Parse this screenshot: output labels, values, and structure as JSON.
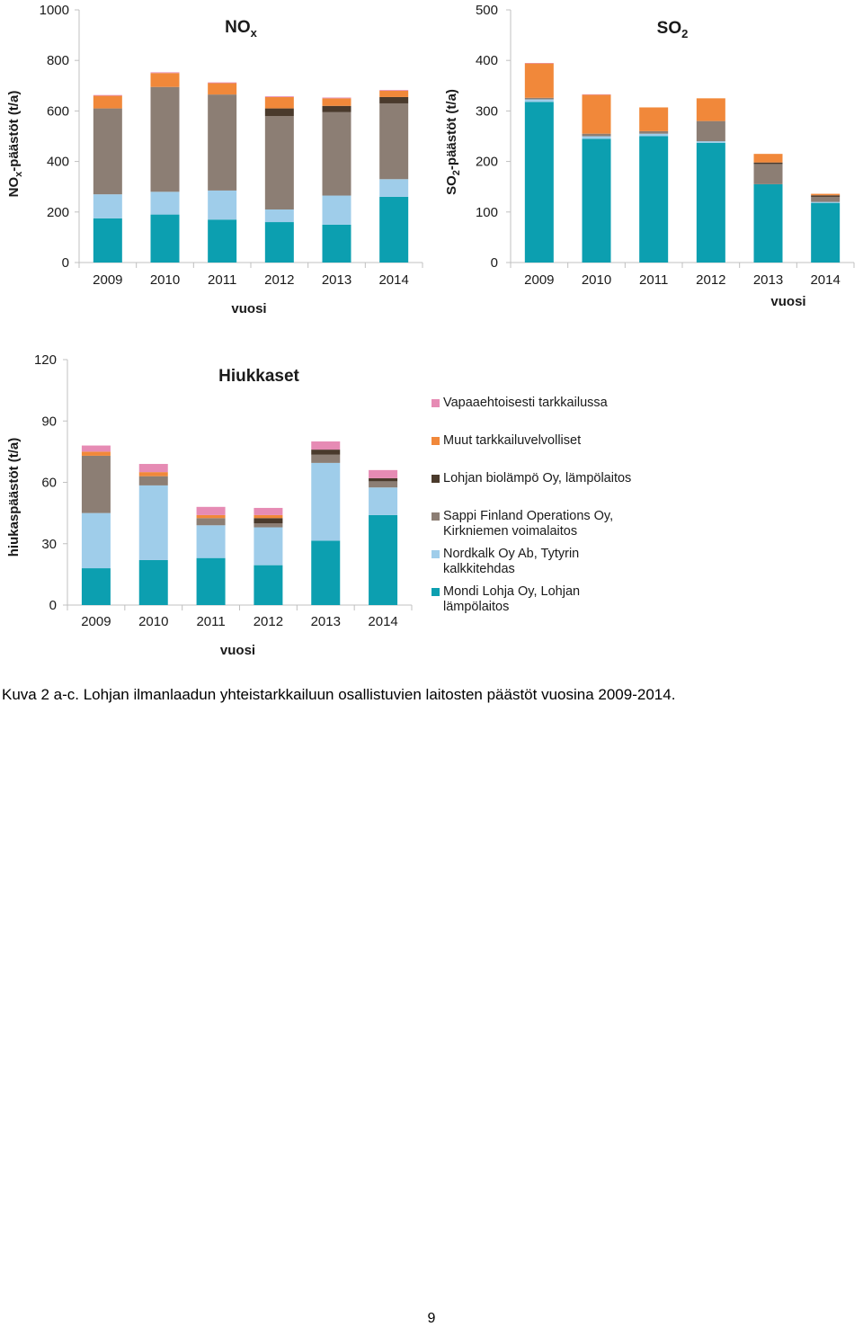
{
  "colors": {
    "mondi": "#0c9fb0",
    "nordkalk": "#9fcdea",
    "sappi": "#8c7e74",
    "lohjan": "#4a3a2c",
    "muut": "#f1883a",
    "vapaa": "#e68bb4",
    "axis": "#c0c0c0"
  },
  "series_keys": [
    "mondi",
    "nordkalk",
    "sappi",
    "lohjan",
    "muut",
    "vapaa"
  ],
  "legend": [
    {
      "key": "vapaa",
      "label": "Vapaaehtoisesti tarkkailussa"
    },
    {
      "key": "muut",
      "label": "Muut tarkkailuvelvolliset"
    },
    {
      "key": "lohjan",
      "label": "Lohjan biolämpö Oy, lämpölaitos"
    },
    {
      "key": "sappi",
      "label": "Sappi Finland Operations Oy, Kirkniemen voimalaitos"
    },
    {
      "key": "nordkalk",
      "label": "Nordkalk Oy Ab, Tytyrin kalkkitehdas"
    },
    {
      "key": "mondi",
      "label": "Mondi Lohja Oy, Lohjan lämpölaitos"
    }
  ],
  "chart_data": [
    {
      "type": "bar",
      "stacked": true,
      "title": "NO",
      "title_sub": "x",
      "ylabel": "NO",
      "ylabel_sub": "x",
      "ylabel_rest": "-päästöt (t/a)",
      "xlabel": "vuosi",
      "ylim": [
        0,
        1000
      ],
      "yticks": [
        0,
        200,
        400,
        600,
        800,
        1000
      ],
      "categories": [
        "2009",
        "2010",
        "2011",
        "2012",
        "2013",
        "2014"
      ],
      "series": [
        {
          "key": "mondi",
          "name": "Mondi Lohja Oy, Lohjan lämpölaitos",
          "values": [
            175,
            190,
            170,
            160,
            150,
            260
          ]
        },
        {
          "key": "nordkalk",
          "name": "Nordkalk Oy Ab, Tytyrin kalkkitehdas",
          "values": [
            95,
            90,
            115,
            50,
            115,
            70
          ]
        },
        {
          "key": "sappi",
          "name": "Sappi Finland Operations Oy, Kirkniemen voimalaitos",
          "values": [
            340,
            415,
            380,
            370,
            330,
            300
          ]
        },
        {
          "key": "lohjan",
          "name": "Lohjan biolämpö Oy, lämpölaitos",
          "values": [
            0,
            0,
            0,
            30,
            25,
            25
          ]
        },
        {
          "key": "muut",
          "name": "Muut tarkkailuvelvolliset",
          "values": [
            50,
            55,
            45,
            45,
            30,
            25
          ]
        },
        {
          "key": "vapaa",
          "name": "Vapaaehtoisesti tarkkailussa",
          "values": [
            3,
            3,
            3,
            3,
            3,
            3
          ]
        }
      ]
    },
    {
      "type": "bar",
      "stacked": true,
      "title": "SO",
      "title_sub": "2",
      "ylabel": "SO",
      "ylabel_sub": "2",
      "ylabel_rest": "-päästöt (t/a)",
      "xlabel": "vuosi",
      "ylim": [
        0,
        500
      ],
      "yticks": [
        0,
        100,
        200,
        300,
        400,
        500
      ],
      "categories": [
        "2009",
        "2010",
        "2011",
        "2012",
        "2013",
        "2014"
      ],
      "series": [
        {
          "key": "mondi",
          "name": "Mondi Lohja Oy, Lohjan lämpölaitos",
          "values": [
            318,
            245,
            250,
            237,
            155,
            118
          ]
        },
        {
          "key": "nordkalk",
          "name": "Nordkalk Oy Ab, Tytyrin kalkkitehdas",
          "values": [
            5,
            5,
            5,
            3,
            0,
            2
          ]
        },
        {
          "key": "sappi",
          "name": "Sappi Finland Operations Oy, Kirkniemen voimalaitos",
          "values": [
            3,
            5,
            5,
            40,
            40,
            10
          ]
        },
        {
          "key": "lohjan",
          "name": "Lohjan biolämpö Oy, lämpölaitos",
          "values": [
            0,
            0,
            0,
            0,
            3,
            3
          ]
        },
        {
          "key": "muut",
          "name": "Muut tarkkailuvelvolliset",
          "values": [
            68,
            77,
            47,
            45,
            17,
            3
          ]
        },
        {
          "key": "vapaa",
          "name": "Vapaaehtoisesti tarkkailussa",
          "values": [
            1,
            1,
            0,
            0,
            0,
            0
          ]
        }
      ]
    },
    {
      "type": "bar",
      "stacked": true,
      "title": "Hiukkaset",
      "title_sub": "",
      "ylabel": "hiukaspäästöt (t/a)",
      "ylabel_sub": "",
      "ylabel_rest": "",
      "xlabel": "vuosi",
      "ylim": [
        0,
        120
      ],
      "yticks": [
        0,
        30,
        60,
        90,
        120
      ],
      "categories": [
        "2009",
        "2010",
        "2011",
        "2012",
        "2013",
        "2014"
      ],
      "series": [
        {
          "key": "mondi",
          "name": "Mondi Lohja Oy, Lohjan lämpölaitos",
          "values": [
            18,
            22,
            23,
            19.5,
            31.5,
            44
          ]
        },
        {
          "key": "nordkalk",
          "name": "Nordkalk Oy Ab, Tytyrin kalkkitehdas",
          "values": [
            27,
            36.5,
            16,
            18.5,
            38,
            13.5
          ]
        },
        {
          "key": "sappi",
          "name": "Sappi Finland Operations Oy, Kirkniemen voimalaitos",
          "values": [
            28,
            4.5,
            3.5,
            2,
            4,
            3
          ]
        },
        {
          "key": "lohjan",
          "name": "Lohjan biolämpö Oy, lämpölaitos",
          "values": [
            0,
            0,
            0,
            2.5,
            2.5,
            1.5
          ]
        },
        {
          "key": "muut",
          "name": "Muut tarkkailuvelvolliset",
          "values": [
            2,
            2,
            1.5,
            1.5,
            0,
            0
          ]
        },
        {
          "key": "vapaa",
          "name": "Vapaaehtoisesti tarkkailussa",
          "values": [
            3,
            4,
            4,
            3.5,
            4,
            4
          ]
        }
      ]
    }
  ],
  "caption": "Kuva 2 a-c. Lohjan ilmanlaadun yhteistarkkailuun osallistuvien laitosten päästöt vuosina 2009-2014.",
  "page_number": "9"
}
